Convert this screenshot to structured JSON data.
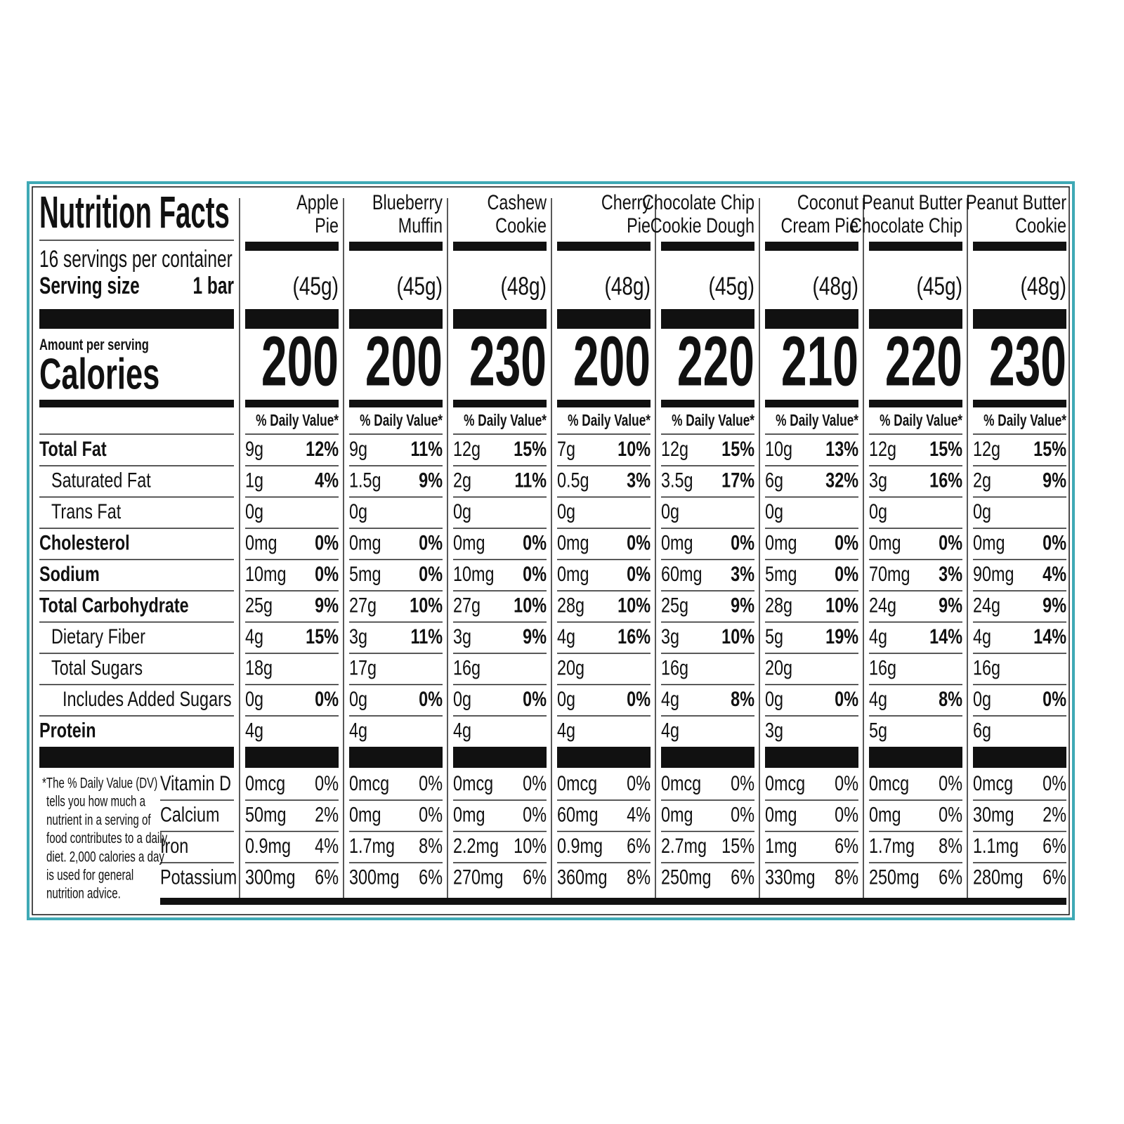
{
  "header": {
    "title": "Nutrition Facts",
    "servings": "16 servings per container",
    "serving_size_label": "Serving size",
    "serving_size_value": "1 bar",
    "amount_per_serving": "Amount per serving",
    "calories_label": "Calories",
    "daily_value_header": "% Daily Value*"
  },
  "nutrients": [
    {
      "label": "Total Fat",
      "bold": true,
      "indent": 0
    },
    {
      "label": "Saturated Fat",
      "bold": false,
      "indent": 1
    },
    {
      "label": "Trans Fat",
      "bold": false,
      "indent": 1
    },
    {
      "label": "Cholesterol",
      "bold": true,
      "indent": 0
    },
    {
      "label": "Sodium",
      "bold": true,
      "indent": 0
    },
    {
      "label": "Total Carbohydrate",
      "bold": true,
      "indent": 0
    },
    {
      "label": "Dietary Fiber",
      "bold": false,
      "indent": 1
    },
    {
      "label": "Total Sugars",
      "bold": false,
      "indent": 1
    },
    {
      "label": "Includes Added Sugars",
      "bold": false,
      "indent": 2
    },
    {
      "label": "Protein",
      "bold": true,
      "indent": 0
    }
  ],
  "minerals": [
    "Vitamin D",
    "Calcium",
    "Iron",
    "Potassium"
  ],
  "footnote": [
    "*The % Daily Value (DV)",
    "tells you how much a",
    "nutrient in a serving of",
    "food contributes to a daily",
    "diet. 2,000 calories a day",
    "is used for general",
    "nutrition advice."
  ],
  "products": [
    {
      "name": [
        "Apple",
        "Pie"
      ],
      "weight": "(45g)",
      "calories": 200,
      "nutrients": [
        [
          "9g",
          "12%"
        ],
        [
          "1g",
          "4%"
        ],
        [
          "0g"
        ],
        [
          "0mg",
          "0%"
        ],
        [
          "10mg",
          "0%"
        ],
        [
          "25g",
          "9%"
        ],
        [
          "4g",
          "15%"
        ],
        [
          "18g"
        ],
        [
          "0g",
          "0%"
        ],
        [
          "4g"
        ]
      ],
      "minerals": [
        [
          "0mcg",
          "0%"
        ],
        [
          "50mg",
          "2%"
        ],
        [
          "0.9mg",
          "4%"
        ],
        [
          "300mg",
          "6%"
        ]
      ]
    },
    {
      "name": [
        "Blueberry",
        "Muffin"
      ],
      "weight": "(45g)",
      "calories": 200,
      "nutrients": [
        [
          "9g",
          "11%"
        ],
        [
          "1.5g",
          "9%"
        ],
        [
          "0g"
        ],
        [
          "0mg",
          "0%"
        ],
        [
          "5mg",
          "0%"
        ],
        [
          "27g",
          "10%"
        ],
        [
          "3g",
          "11%"
        ],
        [
          "17g"
        ],
        [
          "0g",
          "0%"
        ],
        [
          "4g"
        ]
      ],
      "minerals": [
        [
          "0mcg",
          "0%"
        ],
        [
          "0mg",
          "0%"
        ],
        [
          "1.7mg",
          "8%"
        ],
        [
          "300mg",
          "6%"
        ]
      ]
    },
    {
      "name": [
        "Cashew",
        "Cookie"
      ],
      "weight": "(48g)",
      "calories": 230,
      "nutrients": [
        [
          "12g",
          "15%"
        ],
        [
          "2g",
          "11%"
        ],
        [
          "0g"
        ],
        [
          "0mg",
          "0%"
        ],
        [
          "10mg",
          "0%"
        ],
        [
          "27g",
          "10%"
        ],
        [
          "3g",
          "9%"
        ],
        [
          "16g"
        ],
        [
          "0g",
          "0%"
        ],
        [
          "4g"
        ]
      ],
      "minerals": [
        [
          "0mcg",
          "0%"
        ],
        [
          "0mg",
          "0%"
        ],
        [
          "2.2mg",
          "10%"
        ],
        [
          "270mg",
          "6%"
        ]
      ]
    },
    {
      "name": [
        "Cherry",
        "Pie"
      ],
      "weight": "(48g)",
      "calories": 200,
      "nutrients": [
        [
          "7g",
          "10%"
        ],
        [
          "0.5g",
          "3%"
        ],
        [
          "0g"
        ],
        [
          "0mg",
          "0%"
        ],
        [
          "0mg",
          "0%"
        ],
        [
          "28g",
          "10%"
        ],
        [
          "4g",
          "16%"
        ],
        [
          "20g"
        ],
        [
          "0g",
          "0%"
        ],
        [
          "4g"
        ]
      ],
      "minerals": [
        [
          "0mcg",
          "0%"
        ],
        [
          "60mg",
          "4%"
        ],
        [
          "0.9mg",
          "6%"
        ],
        [
          "360mg",
          "8%"
        ]
      ]
    },
    {
      "name": [
        "Chocolate Chip",
        "Cookie Dough"
      ],
      "weight": "(45g)",
      "calories": 220,
      "nutrients": [
        [
          "12g",
          "15%"
        ],
        [
          "3.5g",
          "17%"
        ],
        [
          "0g"
        ],
        [
          "0mg",
          "0%"
        ],
        [
          "60mg",
          "3%"
        ],
        [
          "25g",
          "9%"
        ],
        [
          "3g",
          "10%"
        ],
        [
          "16g"
        ],
        [
          "4g",
          "8%"
        ],
        [
          "4g"
        ]
      ],
      "minerals": [
        [
          "0mcg",
          "0%"
        ],
        [
          "0mg",
          "0%"
        ],
        [
          "2.7mg",
          "15%"
        ],
        [
          "250mg",
          "6%"
        ]
      ]
    },
    {
      "name": [
        "Coconut",
        "Cream Pie"
      ],
      "weight": "(48g)",
      "calories": 210,
      "nutrients": [
        [
          "10g",
          "13%"
        ],
        [
          "6g",
          "32%"
        ],
        [
          "0g"
        ],
        [
          "0mg",
          "0%"
        ],
        [
          "5mg",
          "0%"
        ],
        [
          "28g",
          "10%"
        ],
        [
          "5g",
          "19%"
        ],
        [
          "20g"
        ],
        [
          "0g",
          "0%"
        ],
        [
          "3g"
        ]
      ],
      "minerals": [
        [
          "0mcg",
          "0%"
        ],
        [
          "0mg",
          "0%"
        ],
        [
          "1mg",
          "6%"
        ],
        [
          "330mg",
          "8%"
        ]
      ]
    },
    {
      "name": [
        "Peanut Butter",
        "Chocolate Chip"
      ],
      "weight": "(45g)",
      "calories": 220,
      "nutrients": [
        [
          "12g",
          "15%"
        ],
        [
          "3g",
          "16%"
        ],
        [
          "0g"
        ],
        [
          "0mg",
          "0%"
        ],
        [
          "70mg",
          "3%"
        ],
        [
          "24g",
          "9%"
        ],
        [
          "4g",
          "14%"
        ],
        [
          "16g"
        ],
        [
          "4g",
          "8%"
        ],
        [
          "5g"
        ]
      ],
      "minerals": [
        [
          "0mcg",
          "0%"
        ],
        [
          "0mg",
          "0%"
        ],
        [
          "1.7mg",
          "8%"
        ],
        [
          "250mg",
          "6%"
        ]
      ]
    },
    {
      "name": [
        "Peanut Butter",
        "Cookie"
      ],
      "weight": "(48g)",
      "calories": 230,
      "nutrients": [
        [
          "12g",
          "15%"
        ],
        [
          "2g",
          "9%"
        ],
        [
          "0g"
        ],
        [
          "0mg",
          "0%"
        ],
        [
          "90mg",
          "4%"
        ],
        [
          "24g",
          "9%"
        ],
        [
          "4g",
          "14%"
        ],
        [
          "16g"
        ],
        [
          "0g",
          "0%"
        ],
        [
          "6g"
        ]
      ],
      "minerals": [
        [
          "0mcg",
          "0%"
        ],
        [
          "30mg",
          "2%"
        ],
        [
          "1.1mg",
          "6%"
        ],
        [
          "280mg",
          "6%"
        ]
      ]
    }
  ]
}
